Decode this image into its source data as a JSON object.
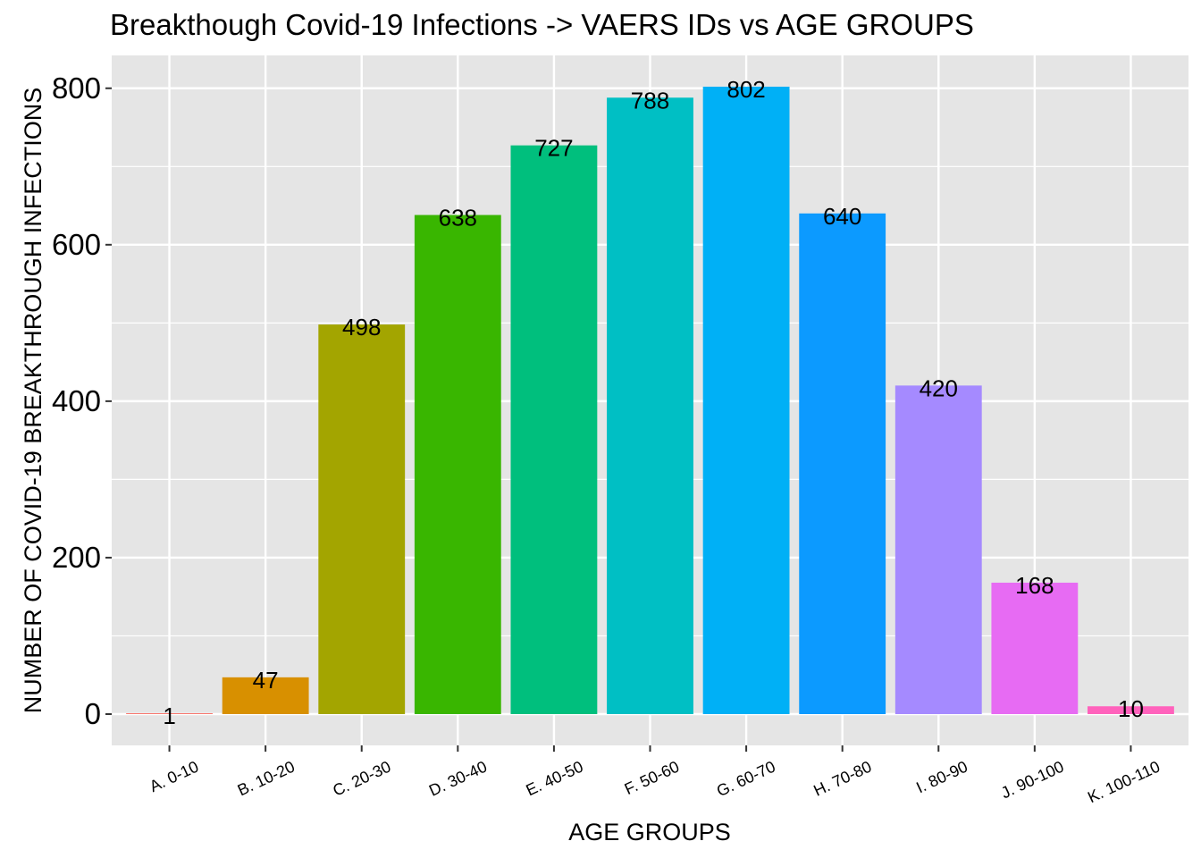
{
  "chart_data": {
    "type": "bar",
    "title": "Breakthough Covid-19 Infections -> VAERS IDs vs AGE GROUPS",
    "xlabel": "AGE GROUPS",
    "ylabel": "NUMBER OF COVID-19 BREAKTHROUGH INFECTIONS",
    "categories": [
      "A. 0-10",
      "B. 10-20",
      "C. 20-30",
      "D. 30-40",
      "E. 40-50",
      "F. 50-60",
      "G. 60-70",
      "H. 70-80",
      "I. 80-90",
      "J. 90-100",
      "K. 100-110"
    ],
    "values": [
      1,
      47,
      498,
      638,
      727,
      788,
      802,
      640,
      420,
      168,
      10
    ],
    "data_labels": [
      "1",
      "47",
      "498",
      "638",
      "727",
      "788",
      "802",
      "640",
      "420",
      "168",
      "10"
    ],
    "colors": [
      "#F8766D",
      "#D89000",
      "#A3A500",
      "#39B600",
      "#00BF7D",
      "#00BFC4",
      "#00B0F6",
      "#0C9AFF",
      "#A58AFF",
      "#E76BF3",
      "#FF62BC"
    ],
    "yticks": [
      0,
      200,
      400,
      600,
      800
    ],
    "ytick_labels": [
      "0",
      "200",
      "400",
      "600",
      "800"
    ],
    "ylim": [
      -40,
      842
    ],
    "grid": true,
    "legend": "none",
    "panel_background": "#E5E5E5",
    "grid_color": "#FFFFFF"
  }
}
